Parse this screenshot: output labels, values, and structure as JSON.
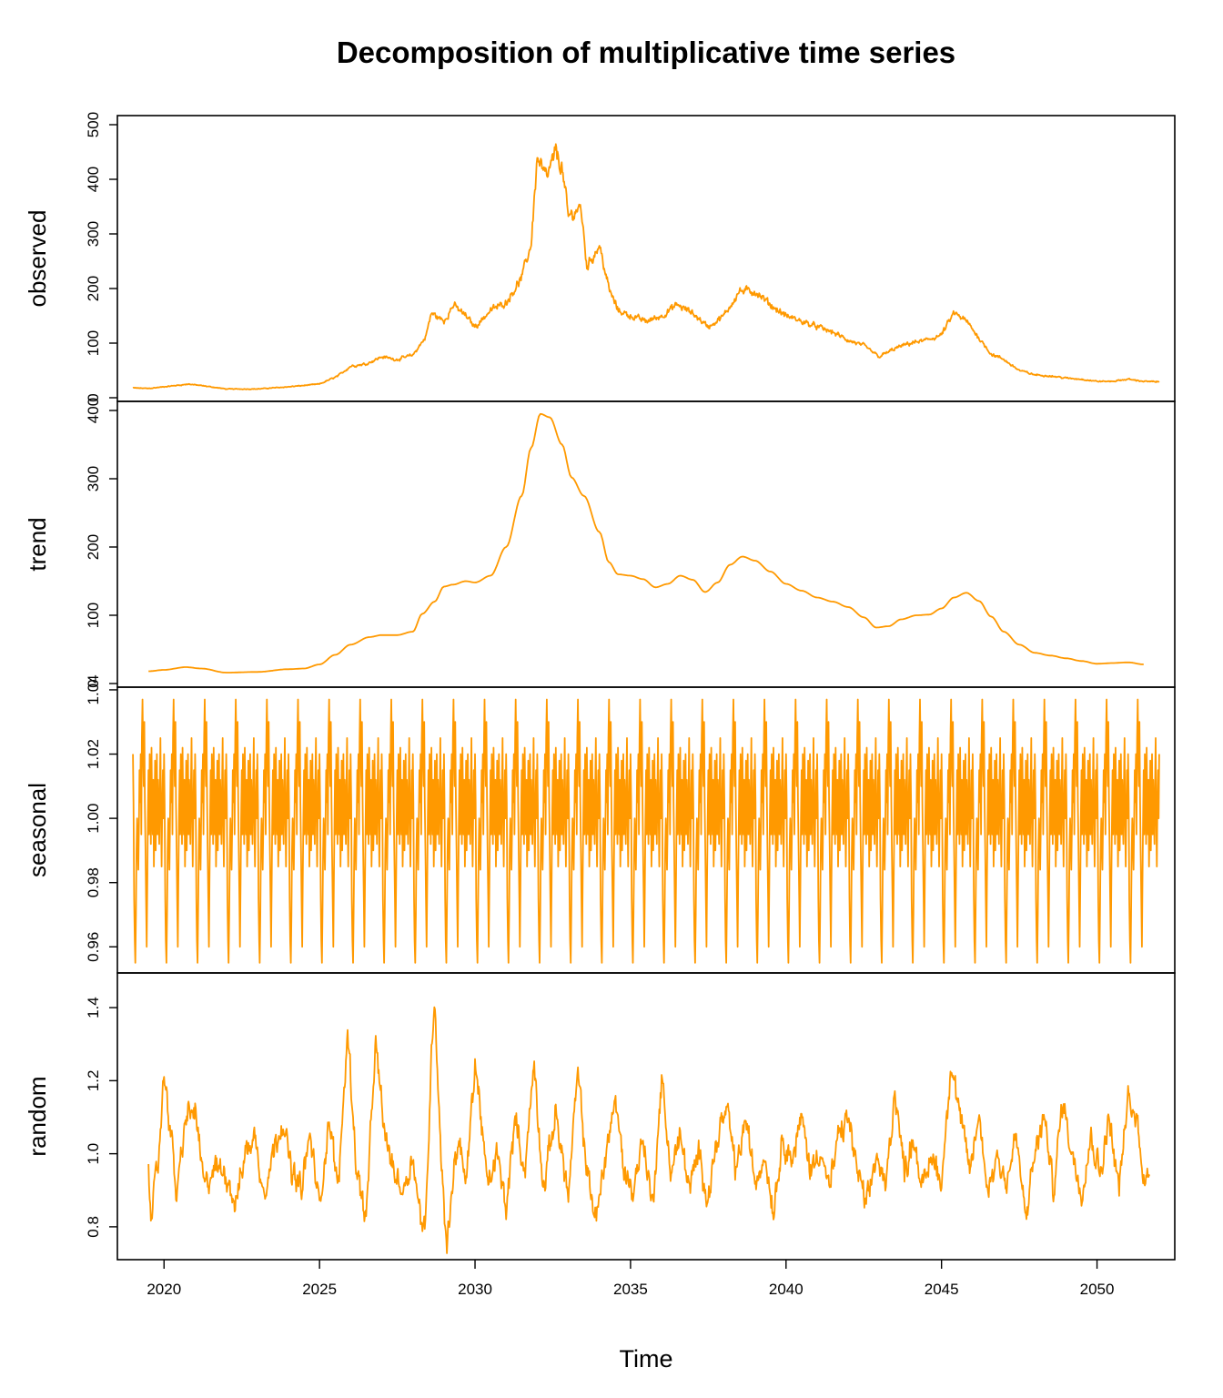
{
  "chart_data": {
    "type": "line",
    "title": "Decomposition of multiplicative time series",
    "xlabel": "Time",
    "xlim": [
      2018.5,
      2052.5
    ],
    "x_ticks": [
      2020,
      2025,
      2030,
      2035,
      2040,
      2045,
      2050
    ],
    "x_tick_labels": [
      "2020",
      "2025",
      "2030",
      "2035",
      "2040",
      "2045",
      "2050"
    ],
    "line_color": "#FF9900",
    "frequency": 52,
    "panels": [
      {
        "name": "observed",
        "ylabel": "observed",
        "ylim": [
          0,
          500
        ],
        "ticks": [
          0,
          100,
          200,
          300,
          400,
          500
        ],
        "tick_labels": [
          "0",
          "100",
          "200",
          "300",
          "400",
          "500"
        ],
        "anchors": [
          [
            2019.0,
            18
          ],
          [
            2019.5,
            17
          ],
          [
            2020.0,
            20
          ],
          [
            2020.8,
            25
          ],
          [
            2021.5,
            20
          ],
          [
            2022.0,
            16
          ],
          [
            2023.0,
            16
          ],
          [
            2024.0,
            20
          ],
          [
            2025.0,
            25
          ],
          [
            2025.6,
            40
          ],
          [
            2026.0,
            58
          ],
          [
            2026.5,
            62
          ],
          [
            2027.0,
            75
          ],
          [
            2027.5,
            70
          ],
          [
            2028.0,
            78
          ],
          [
            2028.4,
            110
          ],
          [
            2028.6,
            155
          ],
          [
            2029.0,
            140
          ],
          [
            2029.3,
            170
          ],
          [
            2029.7,
            150
          ],
          [
            2030.0,
            130
          ],
          [
            2030.5,
            160
          ],
          [
            2031.0,
            175
          ],
          [
            2031.5,
            220
          ],
          [
            2031.8,
            280
          ],
          [
            2032.0,
            440
          ],
          [
            2032.3,
            400
          ],
          [
            2032.6,
            450
          ],
          [
            2032.8,
            420
          ],
          [
            2033.0,
            330
          ],
          [
            2033.4,
            350
          ],
          [
            2033.6,
            240
          ],
          [
            2034.0,
            280
          ],
          [
            2034.3,
            200
          ],
          [
            2034.6,
            160
          ],
          [
            2035.0,
            150
          ],
          [
            2035.5,
            140
          ],
          [
            2036.0,
            150
          ],
          [
            2036.5,
            170
          ],
          [
            2037.0,
            155
          ],
          [
            2037.5,
            130
          ],
          [
            2038.0,
            150
          ],
          [
            2038.5,
            195
          ],
          [
            2039.0,
            195
          ],
          [
            2039.5,
            170
          ],
          [
            2040.0,
            150
          ],
          [
            2040.5,
            140
          ],
          [
            2041.0,
            130
          ],
          [
            2041.5,
            120
          ],
          [
            2042.0,
            105
          ],
          [
            2042.5,
            95
          ],
          [
            2043.0,
            75
          ],
          [
            2043.5,
            90
          ],
          [
            2044.0,
            100
          ],
          [
            2044.5,
            105
          ],
          [
            2045.0,
            115
          ],
          [
            2045.4,
            155
          ],
          [
            2045.8,
            140
          ],
          [
            2046.2,
            110
          ],
          [
            2046.6,
            80
          ],
          [
            2047.0,
            70
          ],
          [
            2047.5,
            50
          ],
          [
            2048.0,
            42
          ],
          [
            2048.5,
            40
          ],
          [
            2049.0,
            36
          ],
          [
            2049.5,
            34
          ],
          [
            2050.0,
            30
          ],
          [
            2050.5,
            30
          ],
          [
            2051.0,
            34
          ],
          [
            2051.5,
            30
          ],
          [
            2052.0,
            29
          ]
        ],
        "noise": 0.06
      },
      {
        "name": "trend",
        "ylabel": "trend",
        "ylim": [
          0,
          400
        ],
        "ticks": [
          0,
          100,
          200,
          300,
          400
        ],
        "tick_labels": [
          "0",
          "100",
          "200",
          "300",
          "400"
        ],
        "anchors": [
          [
            2019.5,
            18
          ],
          [
            2020.0,
            20
          ],
          [
            2020.7,
            24
          ],
          [
            2021.2,
            22
          ],
          [
            2022.0,
            16
          ],
          [
            2023.0,
            17
          ],
          [
            2024.0,
            21
          ],
          [
            2024.5,
            22
          ],
          [
            2025.0,
            28
          ],
          [
            2025.5,
            42
          ],
          [
            2026.0,
            57
          ],
          [
            2026.6,
            68
          ],
          [
            2027.0,
            71
          ],
          [
            2027.5,
            71
          ],
          [
            2028.0,
            76
          ],
          [
            2028.3,
            102
          ],
          [
            2028.7,
            120
          ],
          [
            2029.0,
            142
          ],
          [
            2029.3,
            145
          ],
          [
            2029.7,
            150
          ],
          [
            2030.0,
            148
          ],
          [
            2030.5,
            158
          ],
          [
            2031.0,
            200
          ],
          [
            2031.5,
            275
          ],
          [
            2031.8,
            345
          ],
          [
            2032.1,
            395
          ],
          [
            2032.4,
            390
          ],
          [
            2032.8,
            350
          ],
          [
            2033.1,
            302
          ],
          [
            2033.5,
            275
          ],
          [
            2034.0,
            222
          ],
          [
            2034.3,
            178
          ],
          [
            2034.6,
            160
          ],
          [
            2035.0,
            158
          ],
          [
            2035.4,
            153
          ],
          [
            2035.8,
            141
          ],
          [
            2036.2,
            146
          ],
          [
            2036.6,
            158
          ],
          [
            2037.0,
            152
          ],
          [
            2037.4,
            134
          ],
          [
            2037.8,
            148
          ],
          [
            2038.2,
            174
          ],
          [
            2038.6,
            186
          ],
          [
            2039.0,
            180
          ],
          [
            2039.5,
            164
          ],
          [
            2040.0,
            146
          ],
          [
            2040.5,
            136
          ],
          [
            2041.0,
            126
          ],
          [
            2041.5,
            120
          ],
          [
            2042.0,
            112
          ],
          [
            2042.5,
            97
          ],
          [
            2042.9,
            82
          ],
          [
            2043.3,
            84
          ],
          [
            2043.7,
            94
          ],
          [
            2044.2,
            100
          ],
          [
            2044.6,
            101
          ],
          [
            2045.0,
            110
          ],
          [
            2045.4,
            126
          ],
          [
            2045.8,
            133
          ],
          [
            2046.2,
            121
          ],
          [
            2046.6,
            98
          ],
          [
            2047.0,
            76
          ],
          [
            2047.5,
            57
          ],
          [
            2048.0,
            45
          ],
          [
            2048.5,
            41
          ],
          [
            2049.0,
            37
          ],
          [
            2049.5,
            33
          ],
          [
            2050.0,
            29
          ],
          [
            2050.5,
            30
          ],
          [
            2051.0,
            31
          ],
          [
            2051.5,
            28
          ]
        ]
      },
      {
        "name": "seasonal",
        "ylabel": "seasonal",
        "ylim": [
          0.953,
          1.038
        ],
        "ticks": [
          0.96,
          0.98,
          1.0,
          1.02,
          1.04
        ],
        "tick_labels": [
          "0.96",
          "0.98",
          "1.00",
          "1.02",
          "1.04"
        ],
        "pattern": [
          1.02,
          1.005,
          0.975,
          0.962,
          0.955,
          0.97,
          0.99,
          1.0,
          0.993,
          0.984,
          0.998,
          1.015,
          1.005,
          1.02,
          0.995,
          1.025,
          1.037,
          1.02,
          1.01,
          1.03,
          1.005,
          0.99,
          0.975,
          0.96,
          0.98,
          1.0,
          1.015,
          0.995,
          1.02,
          1.01,
          0.992,
          1.022,
          1.005,
          0.995,
          1.012,
          0.985,
          1.0,
          1.018,
          0.99,
          1.004,
          1.02,
          0.995,
          1.012,
          1.002,
          0.992,
          1.01,
          1.025,
          1.0,
          0.985,
          1.003,
          1.015,
          1.0
        ],
        "start": 2019.0,
        "end": 2052.0
      },
      {
        "name": "random",
        "ylabel": "random",
        "ylim": [
          0.72,
          1.47
        ],
        "ticks": [
          0.8,
          1.0,
          1.2,
          1.4
        ],
        "tick_labels": [
          "0.8",
          "1.0",
          "1.2",
          "1.4"
        ],
        "anchors": [
          [
            2019.5,
            0.98
          ],
          [
            2019.6,
            0.83
          ],
          [
            2019.8,
            0.96
          ],
          [
            2020.0,
            1.22
          ],
          [
            2020.2,
            1.08
          ],
          [
            2020.4,
            0.88
          ],
          [
            2020.7,
            1.1
          ],
          [
            2021.0,
            1.12
          ],
          [
            2021.3,
            0.9
          ],
          [
            2021.6,
            0.96
          ],
          [
            2022.0,
            0.95
          ],
          [
            2022.3,
            0.86
          ],
          [
            2022.6,
            1.0
          ],
          [
            2022.9,
            1.05
          ],
          [
            2023.2,
            0.9
          ],
          [
            2023.5,
            1.0
          ],
          [
            2023.8,
            1.1
          ],
          [
            2024.1,
            0.95
          ],
          [
            2024.4,
            0.9
          ],
          [
            2024.7,
            1.05
          ],
          [
            2025.0,
            0.85
          ],
          [
            2025.3,
            1.1
          ],
          [
            2025.6,
            0.9
          ],
          [
            2025.9,
            1.34
          ],
          [
            2026.2,
            0.95
          ],
          [
            2026.5,
            0.82
          ],
          [
            2026.8,
            1.3
          ],
          [
            2027.1,
            1.05
          ],
          [
            2027.4,
            0.95
          ],
          [
            2027.7,
            0.9
          ],
          [
            2028.0,
            1.0
          ],
          [
            2028.2,
            0.85
          ],
          [
            2028.4,
            0.78
          ],
          [
            2028.6,
            1.28
          ],
          [
            2028.7,
            1.44
          ],
          [
            2028.9,
            1.0
          ],
          [
            2029.1,
            0.74
          ],
          [
            2029.3,
            0.95
          ],
          [
            2029.5,
            1.05
          ],
          [
            2029.7,
            0.9
          ],
          [
            2030.0,
            1.25
          ],
          [
            2030.2,
            1.1
          ],
          [
            2030.4,
            0.9
          ],
          [
            2030.7,
            1.0
          ],
          [
            2031.0,
            0.85
          ],
          [
            2031.3,
            1.1
          ],
          [
            2031.6,
            0.95
          ],
          [
            2031.9,
            1.25
          ],
          [
            2032.2,
            0.9
          ],
          [
            2032.6,
            1.12
          ],
          [
            2033.0,
            0.88
          ],
          [
            2033.3,
            1.22
          ],
          [
            2033.6,
            0.95
          ],
          [
            2033.9,
            0.82
          ],
          [
            2034.2,
            1.0
          ],
          [
            2034.5,
            1.15
          ],
          [
            2034.8,
            0.95
          ],
          [
            2035.1,
            0.9
          ],
          [
            2035.4,
            1.05
          ],
          [
            2035.7,
            0.85
          ],
          [
            2036.0,
            1.2
          ],
          [
            2036.3,
            0.95
          ],
          [
            2036.6,
            1.05
          ],
          [
            2036.9,
            0.9
          ],
          [
            2037.2,
            1.0
          ],
          [
            2037.5,
            0.88
          ],
          [
            2037.8,
            1.05
          ],
          [
            2038.1,
            1.12
          ],
          [
            2038.4,
            0.95
          ],
          [
            2038.7,
            1.1
          ],
          [
            2039.0,
            0.92
          ],
          [
            2039.3,
            1.0
          ],
          [
            2039.6,
            0.85
          ],
          [
            2039.9,
            1.05
          ],
          [
            2040.2,
            0.98
          ],
          [
            2040.5,
            1.1
          ],
          [
            2040.8,
            0.95
          ],
          [
            2041.1,
            1.02
          ],
          [
            2041.4,
            0.9
          ],
          [
            2041.7,
            1.05
          ],
          [
            2042.0,
            1.1
          ],
          [
            2042.3,
            0.95
          ],
          [
            2042.6,
            0.85
          ],
          [
            2042.9,
            1.0
          ],
          [
            2043.2,
            0.9
          ],
          [
            2043.5,
            1.18
          ],
          [
            2043.8,
            0.95
          ],
          [
            2044.1,
            1.05
          ],
          [
            2044.4,
            0.9
          ],
          [
            2044.7,
            1.0
          ],
          [
            2045.0,
            0.92
          ],
          [
            2045.3,
            1.25
          ],
          [
            2045.6,
            1.1
          ],
          [
            2045.9,
            0.95
          ],
          [
            2046.2,
            1.1
          ],
          [
            2046.5,
            0.9
          ],
          [
            2046.8,
            1.0
          ],
          [
            2047.1,
            0.92
          ],
          [
            2047.4,
            1.05
          ],
          [
            2047.7,
            0.82
          ],
          [
            2048.0,
            1.0
          ],
          [
            2048.3,
            1.1
          ],
          [
            2048.6,
            0.9
          ],
          [
            2048.9,
            1.15
          ],
          [
            2049.2,
            1.0
          ],
          [
            2049.5,
            0.9
          ],
          [
            2049.8,
            1.05
          ],
          [
            2050.1,
            0.95
          ],
          [
            2050.4,
            1.1
          ],
          [
            2050.7,
            0.9
          ],
          [
            2051.0,
            1.15
          ],
          [
            2051.3,
            1.08
          ],
          [
            2051.5,
            0.95
          ],
          [
            2051.7,
            0.92
          ]
        ],
        "noise": 0.05
      }
    ]
  }
}
